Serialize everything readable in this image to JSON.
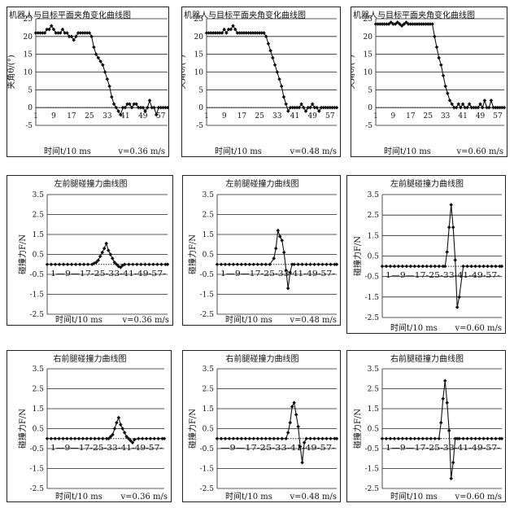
{
  "chart_data": [
    {
      "id": "p1",
      "type": "line",
      "title": "机器人与目标平面夹角变化曲线图",
      "ylabel": "夹角θ/(°)",
      "xlabel": "时间t/10 ms",
      "velocity": "v=0.36 m/s",
      "ylim": [
        -5,
        25
      ],
      "yticks": [
        -5,
        0,
        5,
        10,
        15,
        20,
        25
      ],
      "xticks": [
        "1",
        "9",
        "17",
        "25",
        "33",
        "41",
        "49",
        "57"
      ],
      "xrange": [
        1,
        60
      ],
      "series": [
        {
          "x": [
            1,
            2,
            3,
            4,
            5,
            6,
            7,
            8,
            9,
            10,
            11,
            12,
            13,
            14,
            15,
            16,
            17,
            18,
            19,
            20,
            21,
            22,
            23,
            24,
            25,
            26,
            27,
            28,
            29,
            30,
            31,
            32,
            33,
            34,
            35,
            36,
            37,
            38,
            39,
            40,
            41,
            42,
            43,
            44,
            45,
            46,
            47,
            48,
            49,
            50,
            51,
            52,
            53,
            54,
            55,
            56,
            57,
            58,
            59,
            60
          ],
          "y": [
            21,
            21,
            21,
            21,
            21,
            22,
            22,
            23,
            22,
            21,
            21,
            21,
            22,
            21,
            21,
            20,
            20,
            19,
            20,
            21,
            21,
            21,
            21,
            21,
            21,
            20,
            17,
            15,
            14,
            13,
            12,
            10,
            8,
            6,
            3,
            1,
            0,
            -1,
            -2,
            0,
            0,
            1,
            1,
            0,
            1,
            1,
            0,
            0,
            0,
            -1,
            0,
            2,
            0,
            0,
            -2,
            0,
            0,
            0,
            0,
            0
          ]
        }
      ]
    },
    {
      "id": "p2",
      "type": "line",
      "title": "机器人与目标平面夹角变化曲线图",
      "ylabel": "夹角θ/(°)",
      "xlabel": "时间t/10 ms",
      "velocity": "v=0.48 m/s",
      "ylim": [
        -5,
        25
      ],
      "yticks": [
        -5,
        0,
        5,
        10,
        15,
        20,
        25
      ],
      "xticks": [
        "1",
        "9",
        "17",
        "25",
        "33",
        "41",
        "49",
        "57"
      ],
      "xrange": [
        1,
        60
      ],
      "series": [
        {
          "x": [
            1,
            2,
            3,
            4,
            5,
            6,
            7,
            8,
            9,
            10,
            11,
            12,
            13,
            14,
            15,
            16,
            17,
            18,
            19,
            20,
            21,
            22,
            23,
            24,
            25,
            26,
            27,
            28,
            29,
            30,
            31,
            32,
            33,
            34,
            35,
            36,
            37,
            38,
            39,
            40,
            41,
            42,
            43,
            44,
            45,
            46,
            47,
            48,
            49,
            50,
            51,
            52,
            53,
            54,
            55,
            56,
            57,
            58,
            59,
            60
          ],
          "y": [
            21,
            21,
            21,
            21,
            21,
            21,
            21,
            21,
            22,
            21,
            22,
            22,
            23,
            22,
            21,
            21,
            21,
            21,
            21,
            21,
            21,
            21,
            21,
            21,
            21,
            21,
            21,
            20,
            18,
            16,
            14,
            12,
            10,
            8,
            6,
            3,
            1,
            -1,
            0,
            0,
            0,
            0,
            0,
            1,
            0,
            -1,
            0,
            0,
            1,
            0,
            0,
            -1,
            0,
            0,
            0,
            0,
            0,
            0,
            0,
            0
          ]
        }
      ]
    },
    {
      "id": "p3",
      "type": "line",
      "title": "机器人与目标平面夹角变化曲线图",
      "ylabel": "夹角θ/(°)",
      "xlabel": "时间t/10 ms",
      "velocity": "v=0.60 m/s",
      "ylim": [
        -5,
        25
      ],
      "yticks": [
        -5,
        0,
        5,
        10,
        15,
        20,
        25
      ],
      "xticks": [
        "1",
        "9",
        "17",
        "25",
        "33",
        "41",
        "49",
        "57"
      ],
      "xrange": [
        1,
        60
      ],
      "series": [
        {
          "x": [
            1,
            2,
            3,
            4,
            5,
            6,
            7,
            8,
            9,
            10,
            11,
            12,
            13,
            14,
            15,
            16,
            17,
            18,
            19,
            20,
            21,
            22,
            23,
            24,
            25,
            26,
            27,
            28,
            29,
            30,
            31,
            32,
            33,
            34,
            35,
            36,
            37,
            38,
            39,
            40,
            41,
            42,
            43,
            44,
            45,
            46,
            47,
            48,
            49,
            50,
            51,
            52,
            53,
            54,
            55,
            56,
            57,
            58,
            59,
            60
          ],
          "y": [
            23.5,
            23.5,
            23.5,
            23.5,
            23.5,
            23.5,
            23.5,
            24,
            23.5,
            23.5,
            24,
            23.5,
            23,
            23.5,
            24,
            23.5,
            23.5,
            23.5,
            23.5,
            23.5,
            23.5,
            23.5,
            23.5,
            23.5,
            23.5,
            23.5,
            23.5,
            20,
            17,
            14,
            12,
            9,
            6,
            4,
            2,
            1,
            0,
            0,
            1,
            0,
            1,
            0,
            0,
            1,
            0,
            0,
            0,
            0,
            1,
            0,
            2,
            0,
            0,
            2,
            0,
            0,
            0,
            0,
            0,
            0
          ]
        }
      ]
    },
    {
      "id": "p4",
      "type": "line",
      "title": "左前腿碰撞力曲线图",
      "ylabel": "碰撞力F/N",
      "xlabel": "时间t/10 ms",
      "velocity": "v=0.36 m/s",
      "ylim": [
        -2.5,
        3.5
      ],
      "yticks": [
        3.5,
        2.5,
        1.5,
        0.5,
        -0.5,
        -1.5,
        -2.5
      ],
      "xtick_line": "1—9—17-25-33-41-49-57-",
      "xrange": [
        1,
        60
      ],
      "series": [
        {
          "x": [
            1,
            3,
            5,
            7,
            9,
            11,
            13,
            15,
            17,
            19,
            21,
            23,
            24,
            25,
            26,
            27,
            28,
            29,
            30,
            31,
            32,
            33,
            34,
            35,
            36,
            37,
            38,
            39,
            41,
            43,
            45,
            47,
            49,
            51,
            53,
            55,
            57,
            59,
            60
          ],
          "y": [
            0,
            0,
            0,
            0,
            0,
            0,
            0,
            0,
            0,
            0,
            0,
            0,
            0.05,
            0.1,
            0.2,
            0.4,
            0.6,
            0.8,
            1.05,
            0.7,
            0.5,
            0.3,
            0.1,
            0,
            -0.1,
            -0.15,
            -0.05,
            0,
            0,
            0,
            0,
            0,
            0,
            0,
            0,
            0,
            0,
            0,
            0
          ]
        }
      ]
    },
    {
      "id": "p5",
      "type": "line",
      "title": "左前腿碰撞力曲线图",
      "ylabel": "碰撞力F/N",
      "xlabel": "时间t/10 ms",
      "velocity": "v=0.48 m/s",
      "ylim": [
        -2.5,
        3.5
      ],
      "yticks": [
        3.5,
        2.5,
        1.5,
        0.5,
        -0.5,
        -1.5,
        -2.5
      ],
      "xtick_line": "1—9—17-25-33-41-49-57-",
      "xrange": [
        1,
        60
      ],
      "series": [
        {
          "x": [
            1,
            3,
            5,
            7,
            9,
            11,
            13,
            15,
            17,
            19,
            21,
            23,
            25,
            27,
            29,
            30,
            31,
            32,
            33,
            34,
            35,
            36,
            37,
            38,
            39,
            41,
            43,
            45,
            47,
            49,
            51,
            53,
            55,
            57,
            59,
            60
          ],
          "y": [
            0,
            0,
            0,
            0,
            0,
            0,
            0,
            0,
            0,
            0,
            0,
            0,
            0,
            0,
            0.3,
            0.8,
            1.7,
            1.4,
            1.2,
            0.6,
            -0.3,
            -1.2,
            -0.4,
            0,
            0,
            0,
            0,
            0,
            0,
            0,
            0,
            0,
            0,
            0,
            0,
            0
          ]
        }
      ]
    },
    {
      "id": "p6",
      "type": "line",
      "title": "左前腿碰撞力曲线图",
      "ylabel": "碰撞力F/N",
      "xlabel": "时间t/10 ms",
      "velocity": "v=0.60 m/s",
      "ylim": [
        -2.5,
        3.5
      ],
      "yticks": [
        3.5,
        2.5,
        1.5,
        0.5,
        -0.5,
        -1.5,
        -2.5
      ],
      "xtick_line": "1—9—17-25-33-41-49-57-",
      "xrange": [
        1,
        60
      ],
      "series": [
        {
          "x": [
            1,
            3,
            5,
            7,
            9,
            11,
            13,
            15,
            17,
            19,
            21,
            23,
            25,
            27,
            29,
            31,
            32,
            33,
            34,
            35,
            36,
            37,
            38,
            39,
            41,
            43,
            45,
            47,
            49,
            51,
            53,
            55,
            57,
            59,
            60
          ],
          "y": [
            0,
            0,
            0,
            0,
            0,
            0,
            0,
            0,
            0,
            0,
            0,
            0,
            0,
            0,
            0,
            0,
            0,
            0.7,
            1.9,
            3.0,
            1.9,
            0.3,
            -2.0,
            -1.5,
            0,
            0,
            0,
            0,
            0,
            0,
            0,
            0,
            0,
            0,
            0
          ]
        }
      ]
    },
    {
      "id": "p7",
      "type": "line",
      "title": "右前腿碰撞力曲线图",
      "ylabel": "碰撞力F/N",
      "xlabel": "时间t/10 ms",
      "velocity": "v=0.36 m/s",
      "ylim": [
        -2.5,
        3.5
      ],
      "yticks": [
        3.5,
        2.5,
        1.5,
        0.5,
        -0.5,
        -1.5,
        -2.5
      ],
      "xtick_line": "1—9—17-25-33-41-49-57-",
      "xrange": [
        1,
        60
      ],
      "series": [
        {
          "x": [
            1,
            3,
            5,
            7,
            9,
            11,
            13,
            15,
            17,
            19,
            21,
            23,
            25,
            27,
            29,
            31,
            32,
            33,
            34,
            35,
            36,
            37,
            38,
            39,
            40,
            41,
            42,
            43,
            44,
            45,
            47,
            49,
            51,
            53,
            55,
            57,
            59,
            60
          ],
          "y": [
            0,
            0,
            0,
            0,
            0,
            0,
            0,
            0,
            0,
            0,
            0,
            0,
            0,
            0,
            0,
            0,
            0,
            0.1,
            0.2,
            0.5,
            0.8,
            1.05,
            0.7,
            0.5,
            0.3,
            0.1,
            0,
            -0.1,
            -0.2,
            -0.05,
            0,
            0,
            0,
            0,
            0,
            0,
            0,
            0
          ]
        }
      ]
    },
    {
      "id": "p8",
      "type": "line",
      "title": "右前腿碰撞力曲线图",
      "ylabel": "碰撞力F/N",
      "xlabel": "时间t/10 ms",
      "velocity": "v=0.48 m/s",
      "ylim": [
        -2.5,
        3.5
      ],
      "yticks": [
        3.5,
        2.5,
        1.5,
        0.5,
        -0.5,
        -1.5,
        -2.5
      ],
      "xtick_line": "—9—17-25-33-41-49-57-",
      "xrange": [
        1,
        60
      ],
      "series": [
        {
          "x": [
            1,
            3,
            5,
            7,
            9,
            11,
            13,
            15,
            17,
            19,
            21,
            23,
            25,
            27,
            29,
            31,
            33,
            35,
            36,
            37,
            38,
            39,
            40,
            41,
            42,
            43,
            44,
            45,
            47,
            49,
            51,
            53,
            55,
            57,
            59,
            60
          ],
          "y": [
            0,
            0,
            0,
            0,
            0,
            0,
            0,
            0,
            0,
            0,
            0,
            0,
            0,
            0,
            0,
            0,
            0,
            0,
            0.3,
            0.8,
            1.6,
            1.8,
            1.2,
            0.6,
            -0.4,
            -1.2,
            -0.2,
            0,
            0,
            0,
            0,
            0,
            0,
            0,
            0,
            0
          ]
        }
      ]
    },
    {
      "id": "p9",
      "type": "line",
      "title": "右前腿碰撞力曲线图",
      "ylabel": "碰撞力F/N",
      "xlabel": "时间t/10 ms",
      "velocity": "v=0.60 m/s",
      "ylim": [
        -2.5,
        3.5
      ],
      "yticks": [
        3.5,
        2.5,
        1.5,
        0.5,
        -0.5,
        -1.5,
        -2.5
      ],
      "xtick_line": "1—9—17-25-33-41-49-57-",
      "xrange": [
        1,
        60
      ],
      "series": [
        {
          "x": [
            1,
            3,
            5,
            7,
            9,
            11,
            13,
            15,
            17,
            19,
            21,
            23,
            25,
            27,
            29,
            30,
            31,
            32,
            33,
            34,
            35,
            36,
            37,
            38,
            39,
            41,
            43,
            45,
            47,
            49,
            51,
            53,
            55,
            57,
            59,
            60
          ],
          "y": [
            0,
            0,
            0,
            0,
            0,
            0,
            0,
            0,
            0,
            0,
            0,
            0,
            0,
            0,
            0,
            0.8,
            2.0,
            2.9,
            1.8,
            0.4,
            -2.0,
            -1.2,
            0,
            0,
            0,
            0,
            0,
            0,
            0,
            0,
            0,
            0,
            0,
            0,
            0,
            0
          ]
        }
      ]
    }
  ]
}
